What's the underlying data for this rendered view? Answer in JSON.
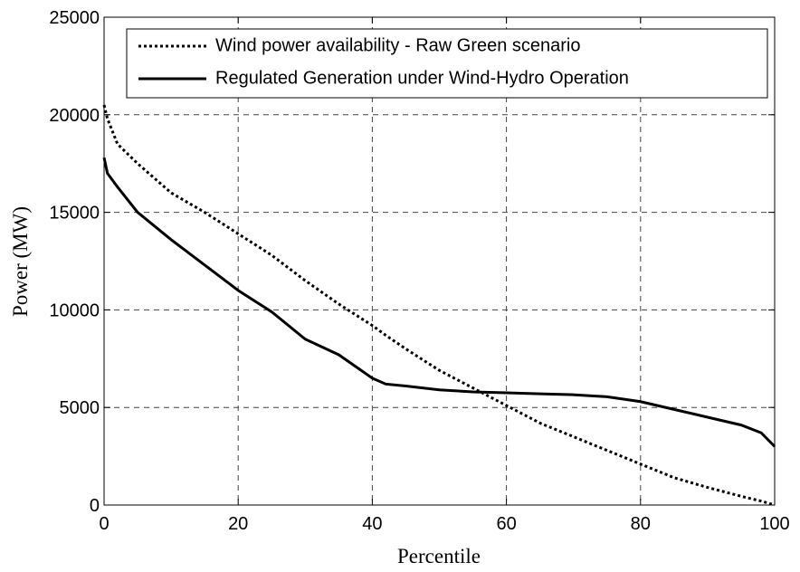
{
  "chart_data": {
    "type": "line",
    "xlabel": "Percentile",
    "ylabel": "Power (MW)",
    "x": [
      0,
      0.5,
      2,
      5,
      10,
      15,
      20,
      25,
      30,
      35,
      40,
      42,
      45,
      50,
      55,
      60,
      65,
      70,
      75,
      80,
      85,
      90,
      95,
      98,
      100
    ],
    "series": [
      {
        "name": "Wind power availability - Raw Green scenario",
        "color": "#000000",
        "linestyle": "dotted",
        "values": [
          20500,
          19800,
          18500,
          17500,
          16000,
          15000,
          13900,
          12800,
          11500,
          10300,
          9200,
          8700,
          8000,
          6900,
          6000,
          5100,
          4200,
          3500,
          2800,
          2100,
          1400,
          900,
          450,
          200,
          0
        ]
      },
      {
        "name": "Regulated Generation under Wind-Hydro Operation",
        "color": "#000000",
        "linestyle": "solid",
        "values": [
          17800,
          17000,
          16300,
          15000,
          13600,
          12300,
          11000,
          9900,
          8500,
          7700,
          6500,
          6200,
          6100,
          5900,
          5800,
          5750,
          5700,
          5650,
          5550,
          5300,
          4900,
          4500,
          4100,
          3700,
          3000
        ]
      }
    ],
    "xlim": [
      0,
      100
    ],
    "xticks": [
      0,
      20,
      40,
      60,
      80,
      100
    ],
    "ylim": [
      0,
      25000
    ],
    "yticks": [
      0,
      5000,
      10000,
      15000,
      20000,
      25000
    ],
    "grid": true,
    "legend": "upper right"
  }
}
